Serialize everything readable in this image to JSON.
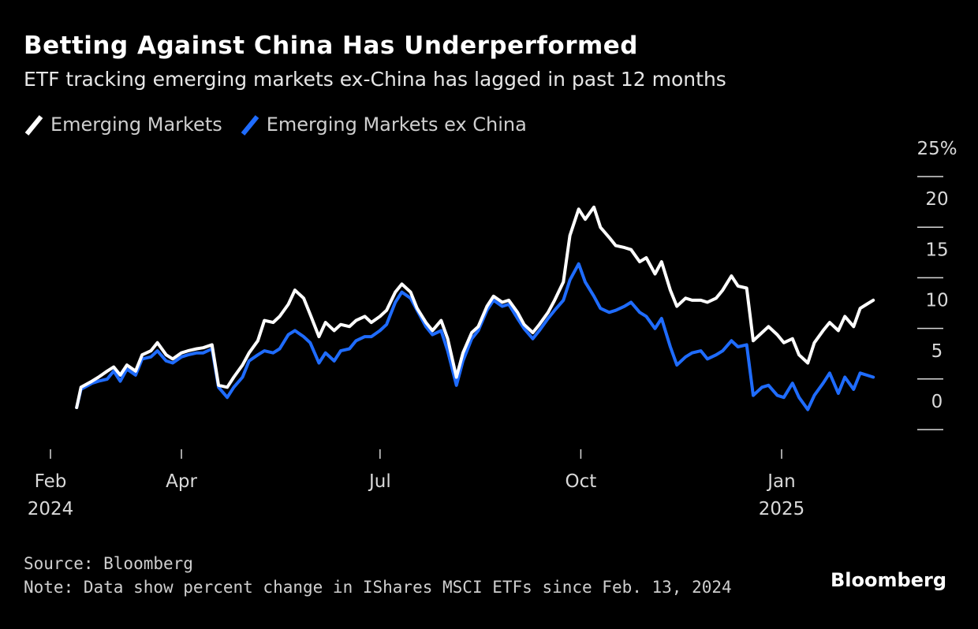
{
  "header": {
    "title": "Betting Against China Has Underperformed",
    "subtitle": "ETF tracking emerging markets ex-China has lagged in past 12 months"
  },
  "footer": {
    "source": "Source: Bloomberg",
    "note": "Note: Data show percent change in IShares MSCI ETFs since Feb. 13, 2024",
    "brand": "Bloomberg"
  },
  "chart_data": {
    "type": "line",
    "title": "Betting Against China Has Underperformed",
    "subtitle": "ETF tracking emerging markets ex-China has lagged in past 12 months",
    "xlabel": "",
    "ylabel": "",
    "x_range": [
      "2024-02-13",
      "2025-02-12"
    ],
    "ylim": [
      -2,
      25
    ],
    "y_ticks": [
      0,
      5,
      10,
      15,
      20,
      25
    ],
    "y_tick_labels": [
      "0",
      "5",
      "10",
      "15",
      "20",
      "25%"
    ],
    "y_axis_side": "right",
    "grid": false,
    "legend_position": "top-left",
    "x_ticks": [
      {
        "date": "2024-02-01",
        "label": "Feb",
        "year": "2024"
      },
      {
        "date": "2024-04-01",
        "label": "Apr",
        "year": ""
      },
      {
        "date": "2024-07-01",
        "label": "Jul",
        "year": ""
      },
      {
        "date": "2024-10-01",
        "label": "Oct",
        "year": ""
      },
      {
        "date": "2025-01-01",
        "label": "Jan",
        "year": "2025"
      }
    ],
    "series": [
      {
        "name": "Emerging Markets",
        "color": "#ffffff",
        "points": [
          [
            "2024-02-13",
            0.0
          ],
          [
            "2024-02-15",
            2.0
          ],
          [
            "2024-02-20",
            2.6
          ],
          [
            "2024-02-23",
            3.0
          ],
          [
            "2024-02-27",
            3.6
          ],
          [
            "2024-03-01",
            4.0
          ],
          [
            "2024-03-04",
            3.2
          ],
          [
            "2024-03-07",
            4.2
          ],
          [
            "2024-03-11",
            3.6
          ],
          [
            "2024-03-14",
            5.2
          ],
          [
            "2024-03-18",
            5.6
          ],
          [
            "2024-03-21",
            6.4
          ],
          [
            "2024-03-25",
            5.2
          ],
          [
            "2024-03-28",
            4.8
          ],
          [
            "2024-04-01",
            5.4
          ],
          [
            "2024-04-04",
            5.6
          ],
          [
            "2024-04-08",
            5.8
          ],
          [
            "2024-04-11",
            5.9
          ],
          [
            "2024-04-15",
            6.2
          ],
          [
            "2024-04-18",
            2.2
          ],
          [
            "2024-04-22",
            2.0
          ],
          [
            "2024-04-25",
            3.0
          ],
          [
            "2024-04-29",
            4.2
          ],
          [
            "2024-05-02",
            5.4
          ],
          [
            "2024-05-06",
            6.6
          ],
          [
            "2024-05-09",
            8.6
          ],
          [
            "2024-05-13",
            8.4
          ],
          [
            "2024-05-16",
            9.0
          ],
          [
            "2024-05-20",
            10.2
          ],
          [
            "2024-05-23",
            11.6
          ],
          [
            "2024-05-27",
            10.8
          ],
          [
            "2024-05-30",
            9.2
          ],
          [
            "2024-06-03",
            7.0
          ],
          [
            "2024-06-06",
            8.4
          ],
          [
            "2024-06-10",
            7.6
          ],
          [
            "2024-06-13",
            8.2
          ],
          [
            "2024-06-17",
            8.0
          ],
          [
            "2024-06-20",
            8.6
          ],
          [
            "2024-06-24",
            9.0
          ],
          [
            "2024-06-27",
            8.4
          ],
          [
            "2024-07-01",
            9.0
          ],
          [
            "2024-07-04",
            9.6
          ],
          [
            "2024-07-08",
            11.4
          ],
          [
            "2024-07-11",
            12.2
          ],
          [
            "2024-07-15",
            11.4
          ],
          [
            "2024-07-18",
            9.8
          ],
          [
            "2024-07-22",
            8.4
          ],
          [
            "2024-07-25",
            7.6
          ],
          [
            "2024-07-29",
            8.6
          ],
          [
            "2024-08-01",
            6.8
          ],
          [
            "2024-08-05",
            3.0
          ],
          [
            "2024-08-08",
            5.4
          ],
          [
            "2024-08-12",
            7.4
          ],
          [
            "2024-08-15",
            8.0
          ],
          [
            "2024-08-19",
            10.0
          ],
          [
            "2024-08-22",
            11.0
          ],
          [
            "2024-08-26",
            10.4
          ],
          [
            "2024-08-29",
            10.6
          ],
          [
            "2024-09-02",
            9.4
          ],
          [
            "2024-09-05",
            8.2
          ],
          [
            "2024-09-09",
            7.4
          ],
          [
            "2024-09-12",
            8.2
          ],
          [
            "2024-09-16",
            9.4
          ],
          [
            "2024-09-19",
            10.6
          ],
          [
            "2024-09-23",
            12.4
          ],
          [
            "2024-09-26",
            17.0
          ],
          [
            "2024-09-30",
            19.6
          ],
          [
            "2024-10-03",
            18.6
          ],
          [
            "2024-10-07",
            19.8
          ],
          [
            "2024-10-10",
            17.8
          ],
          [
            "2024-10-14",
            16.8
          ],
          [
            "2024-10-17",
            16.0
          ],
          [
            "2024-10-21",
            15.8
          ],
          [
            "2024-10-24",
            15.6
          ],
          [
            "2024-10-28",
            14.4
          ],
          [
            "2024-10-31",
            14.8
          ],
          [
            "2024-11-04",
            13.2
          ],
          [
            "2024-11-07",
            14.4
          ],
          [
            "2024-11-11",
            11.6
          ],
          [
            "2024-11-14",
            10.0
          ],
          [
            "2024-11-18",
            10.8
          ],
          [
            "2024-11-21",
            10.6
          ],
          [
            "2024-11-25",
            10.6
          ],
          [
            "2024-11-28",
            10.4
          ],
          [
            "2024-12-02",
            10.8
          ],
          [
            "2024-12-05",
            11.6
          ],
          [
            "2024-12-09",
            13.0
          ],
          [
            "2024-12-12",
            12.0
          ],
          [
            "2024-12-16",
            11.8
          ],
          [
            "2024-12-19",
            6.6
          ],
          [
            "2024-12-23",
            7.4
          ],
          [
            "2024-12-26",
            8.0
          ],
          [
            "2024-12-30",
            7.2
          ],
          [
            "2025-01-02",
            6.4
          ],
          [
            "2025-01-06",
            6.8
          ],
          [
            "2025-01-09",
            5.2
          ],
          [
            "2025-01-13",
            4.4
          ],
          [
            "2025-01-16",
            6.4
          ],
          [
            "2025-01-20",
            7.6
          ],
          [
            "2025-01-23",
            8.4
          ],
          [
            "2025-01-27",
            7.6
          ],
          [
            "2025-01-30",
            9.0
          ],
          [
            "2025-02-03",
            8.0
          ],
          [
            "2025-02-06",
            9.8
          ],
          [
            "2025-02-09",
            10.2
          ],
          [
            "2025-02-12",
            10.6
          ]
        ]
      },
      {
        "name": "Emerging Markets ex China",
        "color": "#1f6cff",
        "points": [
          [
            "2024-02-13",
            0.0
          ],
          [
            "2024-02-15",
            1.8
          ],
          [
            "2024-02-20",
            2.4
          ],
          [
            "2024-02-23",
            2.6
          ],
          [
            "2024-02-27",
            2.8
          ],
          [
            "2024-03-01",
            3.6
          ],
          [
            "2024-03-04",
            2.6
          ],
          [
            "2024-03-07",
            3.8
          ],
          [
            "2024-03-11",
            3.2
          ],
          [
            "2024-03-14",
            4.8
          ],
          [
            "2024-03-18",
            5.0
          ],
          [
            "2024-03-21",
            5.6
          ],
          [
            "2024-03-25",
            4.6
          ],
          [
            "2024-03-28",
            4.4
          ],
          [
            "2024-04-01",
            5.0
          ],
          [
            "2024-04-04",
            5.2
          ],
          [
            "2024-04-08",
            5.4
          ],
          [
            "2024-04-11",
            5.4
          ],
          [
            "2024-04-15",
            5.8
          ],
          [
            "2024-04-18",
            2.0
          ],
          [
            "2024-04-22",
            1.0
          ],
          [
            "2024-04-25",
            2.0
          ],
          [
            "2024-04-29",
            3.0
          ],
          [
            "2024-05-02",
            4.6
          ],
          [
            "2024-05-06",
            5.2
          ],
          [
            "2024-05-09",
            5.6
          ],
          [
            "2024-05-13",
            5.4
          ],
          [
            "2024-05-16",
            5.8
          ],
          [
            "2024-05-20",
            7.2
          ],
          [
            "2024-05-23",
            7.6
          ],
          [
            "2024-05-27",
            7.0
          ],
          [
            "2024-05-30",
            6.4
          ],
          [
            "2024-06-03",
            4.4
          ],
          [
            "2024-06-06",
            5.4
          ],
          [
            "2024-06-10",
            4.6
          ],
          [
            "2024-06-13",
            5.6
          ],
          [
            "2024-06-17",
            5.8
          ],
          [
            "2024-06-20",
            6.6
          ],
          [
            "2024-06-24",
            7.0
          ],
          [
            "2024-06-27",
            7.0
          ],
          [
            "2024-07-01",
            7.6
          ],
          [
            "2024-07-04",
            8.2
          ],
          [
            "2024-07-08",
            10.4
          ],
          [
            "2024-07-11",
            11.4
          ],
          [
            "2024-07-15",
            10.8
          ],
          [
            "2024-07-18",
            9.6
          ],
          [
            "2024-07-22",
            8.0
          ],
          [
            "2024-07-25",
            7.2
          ],
          [
            "2024-07-29",
            7.6
          ],
          [
            "2024-08-01",
            5.6
          ],
          [
            "2024-08-05",
            2.2
          ],
          [
            "2024-08-08",
            4.6
          ],
          [
            "2024-08-12",
            6.8
          ],
          [
            "2024-08-15",
            7.6
          ],
          [
            "2024-08-19",
            9.6
          ],
          [
            "2024-08-22",
            10.6
          ],
          [
            "2024-08-26",
            10.0
          ],
          [
            "2024-08-29",
            10.2
          ],
          [
            "2024-09-02",
            8.8
          ],
          [
            "2024-09-05",
            7.8
          ],
          [
            "2024-09-09",
            6.8
          ],
          [
            "2024-09-12",
            7.6
          ],
          [
            "2024-09-16",
            8.8
          ],
          [
            "2024-09-19",
            9.6
          ],
          [
            "2024-09-23",
            10.6
          ],
          [
            "2024-09-26",
            12.6
          ],
          [
            "2024-09-30",
            14.2
          ],
          [
            "2024-10-03",
            12.4
          ],
          [
            "2024-10-07",
            11.0
          ],
          [
            "2024-10-10",
            9.8
          ],
          [
            "2024-10-14",
            9.4
          ],
          [
            "2024-10-17",
            9.6
          ],
          [
            "2024-10-21",
            10.0
          ],
          [
            "2024-10-24",
            10.4
          ],
          [
            "2024-10-28",
            9.4
          ],
          [
            "2024-10-31",
            9.0
          ],
          [
            "2024-11-04",
            7.8
          ],
          [
            "2024-11-07",
            8.8
          ],
          [
            "2024-11-11",
            6.0
          ],
          [
            "2024-11-14",
            4.2
          ],
          [
            "2024-11-18",
            5.0
          ],
          [
            "2024-11-21",
            5.4
          ],
          [
            "2024-11-25",
            5.6
          ],
          [
            "2024-11-28",
            4.8
          ],
          [
            "2024-12-02",
            5.2
          ],
          [
            "2024-12-05",
            5.6
          ],
          [
            "2024-12-09",
            6.6
          ],
          [
            "2024-12-12",
            6.0
          ],
          [
            "2024-12-16",
            6.2
          ],
          [
            "2024-12-19",
            1.2
          ],
          [
            "2024-12-23",
            2.0
          ],
          [
            "2024-12-26",
            2.2
          ],
          [
            "2024-12-30",
            1.2
          ],
          [
            "2025-01-02",
            1.0
          ],
          [
            "2025-01-06",
            2.4
          ],
          [
            "2025-01-09",
            1.0
          ],
          [
            "2025-01-13",
            -0.2
          ],
          [
            "2025-01-16",
            1.2
          ],
          [
            "2025-01-20",
            2.4
          ],
          [
            "2025-01-23",
            3.4
          ],
          [
            "2025-01-27",
            1.4
          ],
          [
            "2025-01-30",
            3.0
          ],
          [
            "2025-02-03",
            1.8
          ],
          [
            "2025-02-06",
            3.4
          ],
          [
            "2025-02-09",
            3.2
          ],
          [
            "2025-02-12",
            3.0
          ]
        ]
      }
    ]
  }
}
